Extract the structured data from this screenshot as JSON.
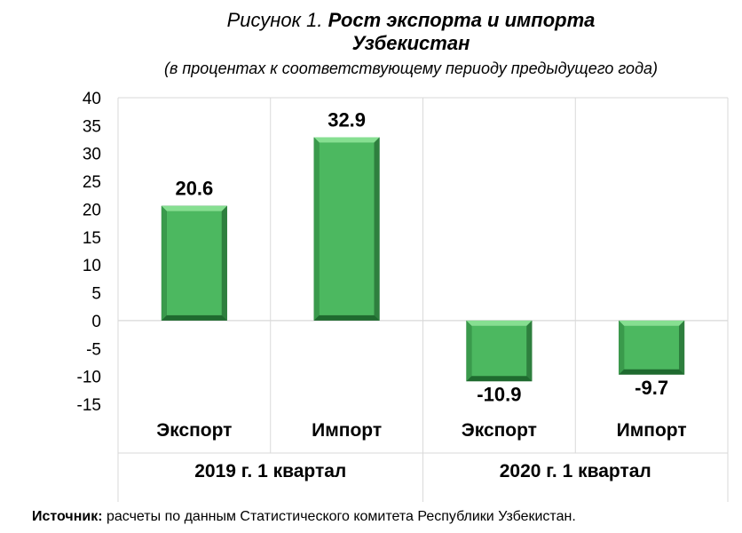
{
  "figure": {
    "title_prefix": "Рисунок 1.",
    "title_bold": "Рост экспорта и импорта",
    "title_line2": "Узбекистан",
    "subtitle": "(в процентах к соответствующему периоду предыдущего года)"
  },
  "source": {
    "label": "Источник:",
    "text": " расчеты по данным Статистического комитета Республики Узбекистан."
  },
  "colors": {
    "bar": "#4cb860",
    "bar_light": "#86df91",
    "bar_dark": "#1f6a2f",
    "grid": "#d9d9d9"
  },
  "chart_data": {
    "type": "bar",
    "categories": [
      "Экспорт",
      "Импорт",
      "Экспорт",
      "Импорт"
    ],
    "groups": [
      "2019 г. 1 квартал",
      "2020 г. 1 квартал"
    ],
    "values": [
      20.6,
      32.9,
      -10.9,
      -9.7
    ],
    "value_labels": [
      "20.6",
      "32.9",
      "-10.9",
      "-9.7"
    ],
    "ylim": [
      -15,
      40
    ],
    "yticks": [
      40,
      35,
      30,
      25,
      20,
      15,
      10,
      5,
      0,
      -5,
      -10,
      -15
    ],
    "grid": true
  }
}
